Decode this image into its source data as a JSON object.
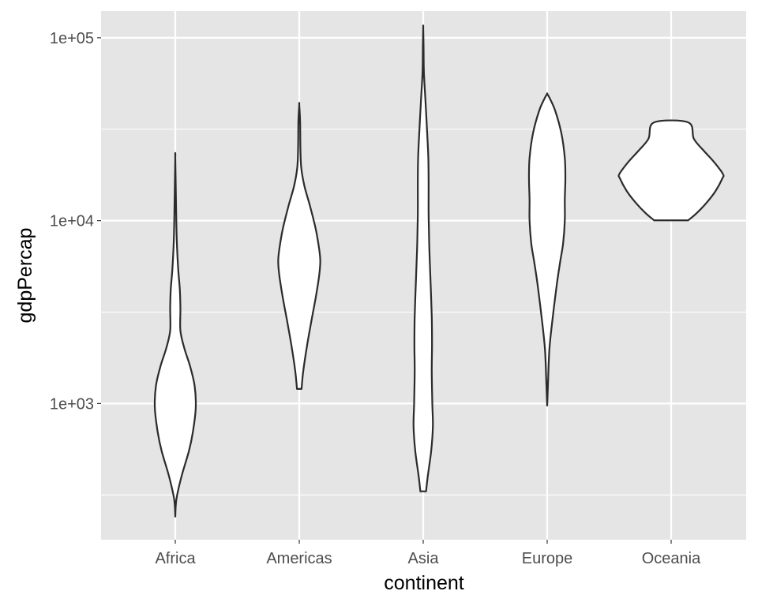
{
  "chart_data": {
    "type": "violin",
    "xlabel": "continent",
    "ylabel": "gdpPercap",
    "y_scale": "log10",
    "ylim": [
      180,
      140000
    ],
    "y_ticks": [
      1000,
      10000,
      100000
    ],
    "y_tick_labels": [
      "1e+03",
      "1e+04",
      "1e+05"
    ],
    "y_minor_ticks": [
      316.23,
      3162.28,
      31622.78
    ],
    "grid": true,
    "legend": "none",
    "colors": {
      "panel": "#e5e5e5",
      "grid": "#ffffff",
      "violin_fill": "#ffffff",
      "violin_stroke": "#2b2b2b"
    },
    "categories": [
      "Africa",
      "Americas",
      "Asia",
      "Europe",
      "Oceania"
    ],
    "violins": [
      {
        "category": "Africa",
        "min": 241,
        "max": 21951,
        "profile": [
          [
            241,
            0.0
          ],
          [
            300,
            0.02
          ],
          [
            400,
            0.11
          ],
          [
            550,
            0.24
          ],
          [
            700,
            0.31
          ],
          [
            950,
            0.36
          ],
          [
            1250,
            0.34
          ],
          [
            1600,
            0.26
          ],
          [
            2000,
            0.16
          ],
          [
            2500,
            0.09
          ],
          [
            3300,
            0.09
          ],
          [
            4200,
            0.08
          ],
          [
            5500,
            0.05
          ],
          [
            8000,
            0.025
          ],
          [
            13000,
            0.012
          ],
          [
            21951,
            0.0
          ]
        ]
      },
      {
        "category": "Americas",
        "min": 1202,
        "max": 42952,
        "profile": [
          [
            1202,
            0.04
          ],
          [
            1500,
            0.07
          ],
          [
            2100,
            0.14
          ],
          [
            2900,
            0.22
          ],
          [
            3800,
            0.29
          ],
          [
            5000,
            0.35
          ],
          [
            6000,
            0.37
          ],
          [
            7000,
            0.35
          ],
          [
            9000,
            0.29
          ],
          [
            12000,
            0.19
          ],
          [
            15500,
            0.09
          ],
          [
            19500,
            0.035
          ],
          [
            25000,
            0.02
          ],
          [
            35000,
            0.015
          ],
          [
            42952,
            0.0
          ]
        ]
      },
      {
        "category": "Asia",
        "min": 331,
        "max": 113523,
        "profile": [
          [
            331,
            0.05
          ],
          [
            400,
            0.08
          ],
          [
            550,
            0.14
          ],
          [
            750,
            0.17
          ],
          [
            1000,
            0.16
          ],
          [
            1500,
            0.15
          ],
          [
            2100,
            0.155
          ],
          [
            3000,
            0.15
          ],
          [
            5000,
            0.125
          ],
          [
            7500,
            0.105
          ],
          [
            11000,
            0.095
          ],
          [
            16000,
            0.095
          ],
          [
            22000,
            0.09
          ],
          [
            30000,
            0.07
          ],
          [
            45000,
            0.04
          ],
          [
            65000,
            0.012
          ],
          [
            90000,
            0.006
          ],
          [
            113523,
            0.0
          ]
        ]
      },
      {
        "category": "Europe",
        "min": 974,
        "max": 49357,
        "profile": [
          [
            974,
            0.0
          ],
          [
            1300,
            0.015
          ],
          [
            2000,
            0.04
          ],
          [
            3000,
            0.1
          ],
          [
            4500,
            0.17
          ],
          [
            6000,
            0.23
          ],
          [
            7500,
            0.28
          ],
          [
            10000,
            0.31
          ],
          [
            13000,
            0.31
          ],
          [
            17000,
            0.32
          ],
          [
            22000,
            0.31
          ],
          [
            30000,
            0.25
          ],
          [
            40000,
            0.14
          ],
          [
            47000,
            0.04
          ],
          [
            49357,
            0.0
          ]
        ]
      },
      {
        "category": "Oceania",
        "min": 10040,
        "max": 34435,
        "profile": [
          [
            10040,
            0.3
          ],
          [
            11000,
            0.45
          ],
          [
            12500,
            0.62
          ],
          [
            14500,
            0.78
          ],
          [
            17000,
            0.9
          ],
          [
            18000,
            0.91
          ],
          [
            21000,
            0.75
          ],
          [
            24000,
            0.58
          ],
          [
            28000,
            0.4
          ],
          [
            34435,
            0.3
          ]
        ]
      }
    ]
  }
}
